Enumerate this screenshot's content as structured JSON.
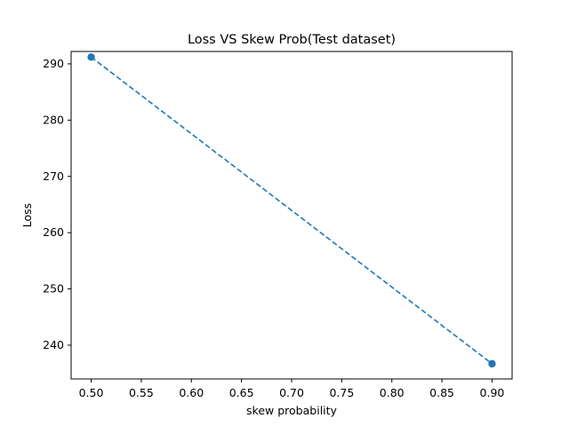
{
  "chart_data": {
    "type": "line",
    "title": "Loss VS Skew Prob(Test dataset)",
    "xlabel": "skew probability",
    "ylabel": "Loss",
    "xlim": [
      0.48,
      0.92
    ],
    "ylim": [
      234.0,
      292.2
    ],
    "x_ticks": [
      0.5,
      0.55,
      0.6,
      0.65,
      0.7,
      0.75,
      0.8,
      0.85,
      0.9
    ],
    "y_ticks": [
      240,
      250,
      260,
      270,
      280,
      290
    ],
    "x_tick_labels": [
      "0.50",
      "0.55",
      "0.60",
      "0.65",
      "0.70",
      "0.75",
      "0.80",
      "0.85",
      "0.90"
    ],
    "y_tick_labels": [
      "240",
      "250",
      "260",
      "270",
      "280",
      "290"
    ],
    "grid": false,
    "series": [
      {
        "x": [
          0.5,
          0.9
        ],
        "y": [
          291.2,
          236.7
        ],
        "color": "#1f77b4",
        "line_style": "dashed",
        "marker": "circle"
      }
    ]
  }
}
